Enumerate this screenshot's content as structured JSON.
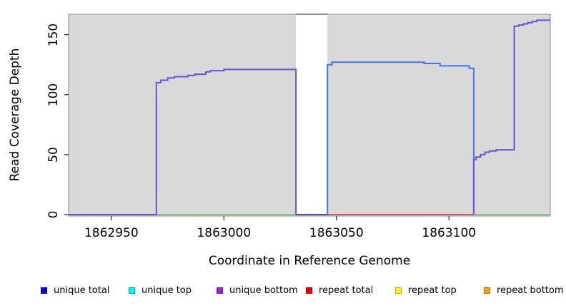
{
  "chart_data": {
    "type": "line",
    "subtype": "step-coverage",
    "title": "",
    "xlabel": "Coordinate in Reference Genome",
    "ylabel": "Read Coverage Depth",
    "xlim": [
      1862931,
      1863145
    ],
    "ylim": [
      0,
      167
    ],
    "grid": false,
    "plot_background": "#D9D9D9",
    "border_color": "#888888",
    "tick_color": "#222222",
    "xticks": [
      {
        "value": 1862950,
        "label": "1862950"
      },
      {
        "value": 1863000,
        "label": "1863000"
      },
      {
        "value": 1863050,
        "label": "1863050"
      },
      {
        "value": 1863100,
        "label": "1863100"
      }
    ],
    "yticks": [
      {
        "value": 0,
        "label": "0"
      },
      {
        "value": 50,
        "label": "50"
      },
      {
        "value": 100,
        "label": "100"
      },
      {
        "value": 150,
        "label": "150"
      }
    ],
    "masked_region": {
      "x0": 1863032,
      "x1": 1863046,
      "fill": "#FFFFFF",
      "top_line_color": "#919191",
      "top_line_width": 2,
      "top_line_value": 167
    },
    "series": [
      {
        "name": "baseline-green-left",
        "color": "#7CC87C",
        "width": 2,
        "points": [
          [
            1862931,
            0
          ],
          [
            1863032,
            0
          ]
        ]
      },
      {
        "name": "baseline-green-right",
        "color": "#7CC87C",
        "width": 2,
        "points": [
          [
            1863111,
            0
          ],
          [
            1863145,
            0
          ]
        ]
      },
      {
        "name": "baseline-red-repeat",
        "color": "#E0506A",
        "width": 2,
        "points": [
          [
            1863046,
            0
          ],
          [
            1863111,
            0
          ]
        ]
      },
      {
        "name": "masked-region-baseline",
        "color": "#4747CF",
        "width": 2,
        "points": [
          [
            1863032,
            0
          ],
          [
            1863046,
            0
          ]
        ]
      },
      {
        "name": "unique-top-coverage",
        "color": "#3B77E8",
        "width": 2,
        "points": [
          [
            1863046,
            0
          ],
          [
            1863046,
            125
          ],
          [
            1863048,
            125
          ],
          [
            1863048,
            127
          ],
          [
            1863089,
            127
          ],
          [
            1863089,
            126
          ],
          [
            1863096,
            126
          ],
          [
            1863096,
            124
          ],
          [
            1863109,
            124
          ],
          [
            1863109,
            122
          ],
          [
            1863111,
            122
          ],
          [
            1863111,
            0
          ]
        ]
      },
      {
        "name": "unique-bottom-coverage-left",
        "color": "#6A4FE0",
        "width": 2,
        "points": [
          [
            1862931,
            0
          ],
          [
            1862970,
            0
          ],
          [
            1862970,
            110
          ],
          [
            1862972,
            110
          ],
          [
            1862972,
            112
          ],
          [
            1862975,
            112
          ],
          [
            1862975,
            114
          ],
          [
            1862978,
            114
          ],
          [
            1862978,
            115
          ],
          [
            1862984,
            115
          ],
          [
            1862984,
            116
          ],
          [
            1862987,
            116
          ],
          [
            1862987,
            117
          ],
          [
            1862992,
            117
          ],
          [
            1862992,
            119
          ],
          [
            1862994,
            119
          ],
          [
            1862994,
            120
          ],
          [
            1863000,
            120
          ],
          [
            1863000,
            121
          ],
          [
            1863032,
            121
          ],
          [
            1863032,
            0
          ]
        ]
      },
      {
        "name": "unique-bottom-coverage-right",
        "color": "#6A4FE0",
        "width": 2,
        "points": [
          [
            1863111,
            0
          ],
          [
            1863111,
            46
          ],
          [
            1863112,
            46
          ],
          [
            1863112,
            48
          ],
          [
            1863114,
            48
          ],
          [
            1863114,
            50
          ],
          [
            1863116,
            50
          ],
          [
            1863116,
            52
          ],
          [
            1863118,
            52
          ],
          [
            1863118,
            53
          ],
          [
            1863121,
            53
          ],
          [
            1863121,
            54
          ],
          [
            1863129,
            54
          ],
          [
            1863129,
            157
          ],
          [
            1863131,
            157
          ],
          [
            1863131,
            158
          ],
          [
            1863133,
            158
          ],
          [
            1863133,
            159
          ],
          [
            1863135,
            159
          ],
          [
            1863135,
            160
          ],
          [
            1863137,
            160
          ],
          [
            1863137,
            161
          ],
          [
            1863139,
            161
          ],
          [
            1863139,
            162
          ],
          [
            1863145,
            162
          ]
        ]
      }
    ],
    "legend": [
      {
        "label": "unique total",
        "color": "#0000EE",
        "border": "#0000A0"
      },
      {
        "label": "unique top",
        "color": "#00FFFF",
        "border": "#009999"
      },
      {
        "label": "unique bottom",
        "color": "#A020F0",
        "border": "#7010B0"
      },
      {
        "label": "repeat total",
        "color": "#EE0000",
        "border": "#A00000"
      },
      {
        "label": "repeat top",
        "color": "#FFFF00",
        "border": "#B0B000"
      },
      {
        "label": "repeat bottom",
        "color": "#FFA500",
        "border": "#B07000"
      }
    ],
    "legend_position": "bottom"
  }
}
